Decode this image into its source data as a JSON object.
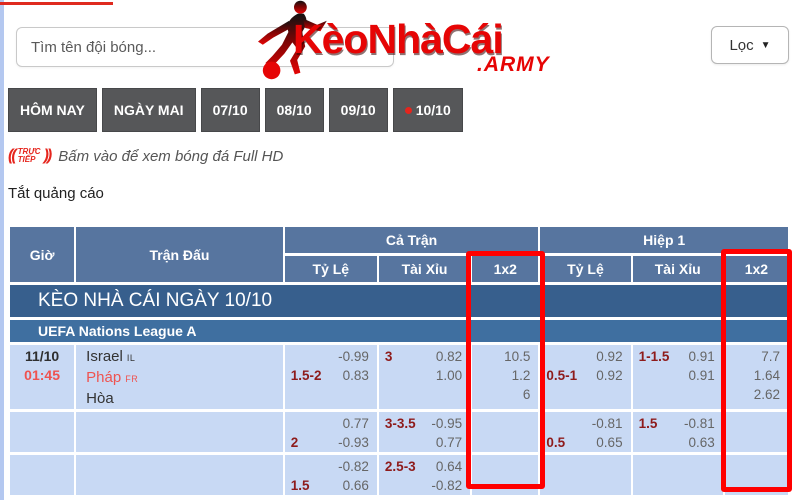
{
  "colors": {
    "brand_red": "#e60505",
    "highlight_red": "#ff0000",
    "header_blue": "#57759f",
    "section_blue": "#375f8d",
    "league_blue": "#3f6fa0",
    "row_blue": "#c8d9f4",
    "handicap_maroon": "#8e1b1b",
    "value_gray": "#666666",
    "team_red": "#ef5350",
    "tab_gray": "#565759",
    "live_red": "#e5251d"
  },
  "topbar": {
    "search_placeholder": "Tìm tên đội bóng...",
    "filter_label": "Lọc",
    "logo_main": "KèoNhàCái",
    "logo_suffix": ".ARMY"
  },
  "tabs": [
    {
      "key": "hom-nay",
      "label": "HÔM NAY",
      "dot": false
    },
    {
      "key": "ngay-mai",
      "label": "NGÀY MAI",
      "dot": false
    },
    {
      "key": "07-10",
      "label": "07/10",
      "dot": false
    },
    {
      "key": "08-10",
      "label": "08/10",
      "dot": false
    },
    {
      "key": "09-10",
      "label": "09/10",
      "dot": false
    },
    {
      "key": "10-10",
      "label": "10/10",
      "dot": true
    }
  ],
  "live_banner": {
    "badge_line1": "TRỰC",
    "badge_line2": "TIẾP",
    "sig_open": "((",
    "sig_close": "))",
    "text": "Bấm vào để xem bóng đá Full HD"
  },
  "ads_toggle": "Tắt quảng cáo",
  "table": {
    "headers": {
      "time": "Giờ",
      "match": "Trận Đấu",
      "full_match": "Cả Trận",
      "half1": "Hiệp 1",
      "odds": "Tỷ Lệ",
      "over_under": "Tài Xỉu",
      "x12": "1x2"
    },
    "section_title": "KÈO NHÀ CÁI NGÀY 10/10",
    "league_title": "UEFA Nations League A",
    "rows": [
      {
        "time": [
          {
            "text": "11/10",
            "red": false
          },
          {
            "text": "01:45",
            "red": true
          }
        ],
        "teams": [
          {
            "name": "Israel",
            "code": "IL",
            "red": false
          },
          {
            "name": "Pháp",
            "code": "FR",
            "red": true
          },
          {
            "name": "Hòa",
            "code": "",
            "red": false
          }
        ],
        "ft": {
          "tyle": [
            {
              "l": "",
              "r": "-0.99"
            },
            {
              "l": "1.5-2",
              "r": "0.83"
            }
          ],
          "taixiu": [
            {
              "l": "3",
              "r": "0.82"
            },
            {
              "l": "",
              "r": "1.00"
            }
          ],
          "x12": [
            "10.5",
            "1.2",
            "6"
          ]
        },
        "h1": {
          "tyle": [
            {
              "l": "",
              "r": "0.92"
            },
            {
              "l": "0.5-1",
              "r": "0.92"
            }
          ],
          "taixiu": [
            {
              "l": "1-1.5",
              "r": "0.91"
            },
            {
              "l": "",
              "r": "0.91"
            }
          ],
          "x12": [
            "7.7",
            "1.64",
            "2.62"
          ]
        }
      },
      {
        "time": [],
        "teams": [],
        "ft": {
          "tyle": [
            {
              "l": "",
              "r": "0.77"
            },
            {
              "l": "2",
              "r": "-0.93"
            }
          ],
          "taixiu": [
            {
              "l": "3-3.5",
              "r": "-0.95"
            },
            {
              "l": "",
              "r": "0.77"
            }
          ],
          "x12": []
        },
        "h1": {
          "tyle": [
            {
              "l": "",
              "r": "-0.81"
            },
            {
              "l": "0.5",
              "r": "0.65"
            }
          ],
          "taixiu": [
            {
              "l": "1.5",
              "r": "-0.81"
            },
            {
              "l": "",
              "r": "0.63"
            }
          ],
          "x12": []
        }
      },
      {
        "time": [],
        "teams": [],
        "ft": {
          "tyle": [
            {
              "l": "",
              "r": "-0.82"
            },
            {
              "l": "1.5",
              "r": "0.66"
            }
          ],
          "taixiu": [
            {
              "l": "2.5-3",
              "r": "0.64"
            },
            {
              "l": "",
              "r": "-0.82"
            }
          ],
          "x12": []
        },
        "h1": {
          "tyle": [],
          "taixiu": [],
          "x12": []
        }
      }
    ]
  }
}
